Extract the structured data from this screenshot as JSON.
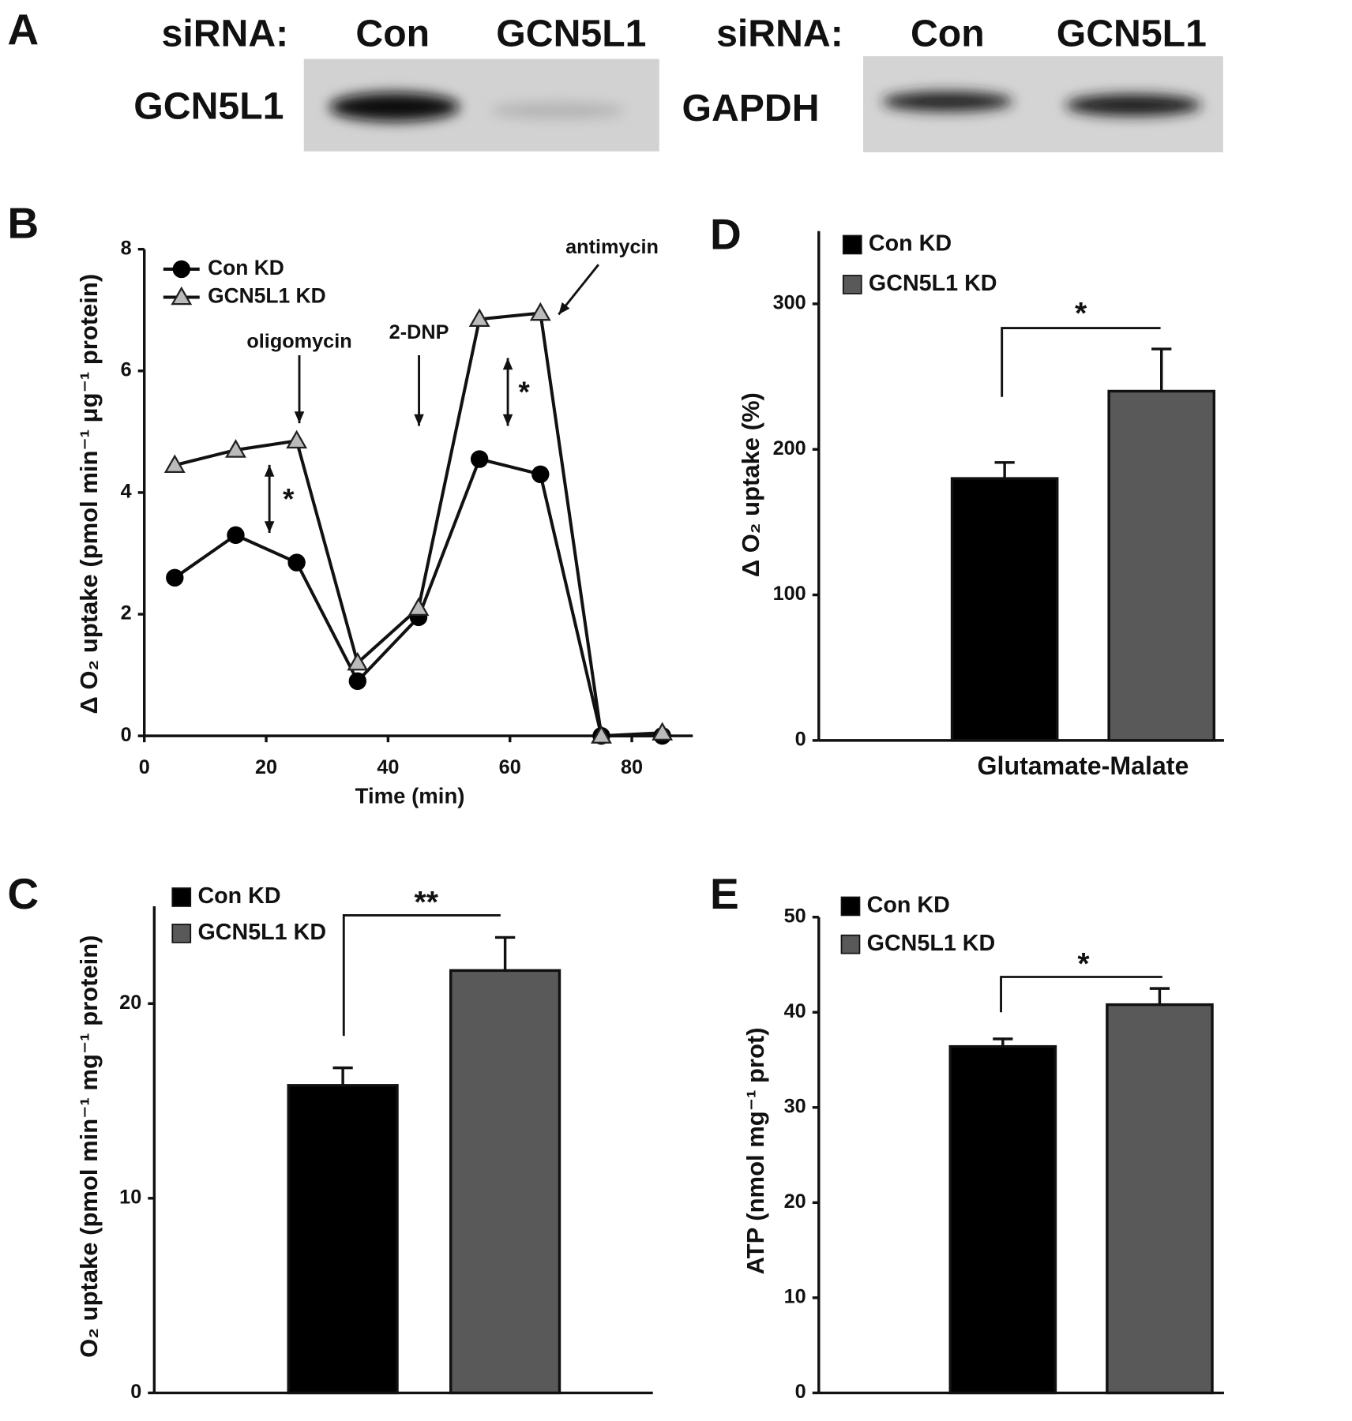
{
  "blot": {
    "panel": "A",
    "left": {
      "prefix": "siRNA:",
      "lanes": [
        "Con",
        "GCN5L1"
      ],
      "protein": "GCN5L1"
    },
    "right": {
      "prefix": "siRNA:",
      "lanes": [
        "Con",
        "GCN5L1"
      ],
      "protein": "GAPDH"
    }
  },
  "chart_data": [
    {
      "type": "line",
      "panel": "B",
      "x": [
        5,
        15,
        25,
        35,
        45,
        55,
        65,
        75,
        85
      ],
      "series": [
        {
          "name": "Con KD",
          "color": "#000000",
          "marker": "circle",
          "values": [
            2.6,
            3.3,
            2.85,
            0.9,
            1.95,
            4.55,
            4.3,
            0,
            0
          ]
        },
        {
          "name": "GCN5L1 KD",
          "color": "#bbbbbb",
          "marker": "triangle",
          "values": [
            4.45,
            4.7,
            4.85,
            1.2,
            2.1,
            6.85,
            6.95,
            0,
            0.05
          ]
        }
      ],
      "xlim": [
        0,
        90
      ],
      "xticks": [
        0,
        20,
        40,
        60,
        80
      ],
      "ylim": [
        0,
        8
      ],
      "yticks": [
        0,
        2,
        4,
        6,
        8
      ],
      "x_label": "Time (min)",
      "y_label": "Δ O₂ uptake (pmol min⁻¹ μg⁻¹ protein)",
      "annotations": [
        "oligomycin",
        "2-DNP",
        "antimycin",
        "*",
        "*"
      ]
    },
    {
      "type": "bar",
      "panel": "C",
      "categories": [
        null
      ],
      "series": [
        {
          "name": "Con KD",
          "color": "#000000",
          "values": [
            15.8
          ],
          "errors": [
            0.9
          ]
        },
        {
          "name": "GCN5L1 KD",
          "color": "#595959",
          "values": [
            21.7
          ],
          "errors": [
            1.7
          ]
        }
      ],
      "ylim": [
        0,
        25
      ],
      "yticks": [
        0,
        10,
        20
      ],
      "y_label": "O₂ uptake (pmol min⁻¹ mg⁻¹ protein)",
      "significance": "**"
    },
    {
      "type": "bar",
      "panel": "D",
      "categories": [
        "Glutamate-Malate"
      ],
      "series": [
        {
          "name": "Con KD",
          "color": "#000000",
          "values": [
            180
          ],
          "errors": [
            11
          ]
        },
        {
          "name": "GCN5L1 KD",
          "color": "#595959",
          "values": [
            240
          ],
          "errors": [
            29
          ]
        }
      ],
      "ylim": [
        0,
        350
      ],
      "yticks": [
        0,
        100,
        200,
        300
      ],
      "y_label": "Δ O₂ uptake (%)",
      "significance": "*"
    },
    {
      "type": "bar",
      "panel": "E",
      "categories": [
        null
      ],
      "series": [
        {
          "name": "Con KD",
          "color": "#000000",
          "values": [
            36.4
          ],
          "errors": [
            0.8
          ]
        },
        {
          "name": "GCN5L1 KD",
          "color": "#595959",
          "values": [
            40.8
          ],
          "errors": [
            1.7
          ]
        }
      ],
      "ylim": [
        0,
        50
      ],
      "yticks": [
        0,
        10,
        20,
        30,
        40,
        50
      ],
      "y_label": "ATP (nmol mg⁻¹ prot)",
      "significance": "*"
    }
  ]
}
